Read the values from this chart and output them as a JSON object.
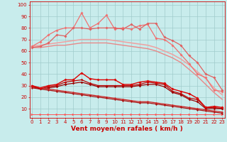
{
  "x": [
    0,
    1,
    2,
    3,
    4,
    5,
    6,
    7,
    8,
    9,
    10,
    11,
    12,
    13,
    14,
    15,
    16,
    17,
    18,
    19,
    20,
    21,
    22,
    23
  ],
  "series": [
    {
      "name": "smooth_top1",
      "values": [
        64,
        65,
        66,
        67,
        68,
        69,
        70,
        70,
        70,
        70,
        69,
        68,
        67,
        66,
        65,
        63,
        60,
        57,
        53,
        48,
        42,
        36,
        28,
        22
      ],
      "color": "#f0a0a0",
      "lw": 1.1,
      "marker": null,
      "ms": 0,
      "zorder": 2
    },
    {
      "name": "smooth_top2",
      "values": [
        63,
        63,
        64,
        65,
        65,
        66,
        67,
        67,
        67,
        67,
        66,
        65,
        64,
        63,
        62,
        60,
        57,
        54,
        50,
        44,
        38,
        31,
        24,
        18
      ],
      "color": "#e88888",
      "lw": 1.0,
      "marker": null,
      "ms": 0,
      "zorder": 2
    },
    {
      "name": "spiky_high1",
      "values": [
        64,
        68,
        74,
        78,
        80,
        80,
        93,
        80,
        84,
        91,
        79,
        80,
        79,
        82,
        83,
        71,
        70,
        65,
        57,
        49,
        40,
        37,
        26,
        25
      ],
      "color": "#f07070",
      "lw": 0.9,
      "marker": "D",
      "ms": 2.0,
      "zorder": 3
    },
    {
      "name": "spiky_high2",
      "values": [
        63,
        64,
        67,
        74,
        73,
        80,
        80,
        79,
        80,
        80,
        80,
        79,
        83,
        79,
        84,
        84,
        72,
        69,
        65,
        56,
        50,
        40,
        37,
        26
      ],
      "color": "#e06060",
      "lw": 0.9,
      "marker": "D",
      "ms": 2.0,
      "zorder": 3
    },
    {
      "name": "medium1",
      "values": [
        30,
        28,
        30,
        31,
        35,
        35,
        41,
        36,
        35,
        35,
        35,
        31,
        31,
        33,
        34,
        33,
        32,
        27,
        25,
        23,
        19,
        11,
        12,
        11
      ],
      "color": "#dd0000",
      "lw": 1.0,
      "marker": "D",
      "ms": 2.0,
      "zorder": 4
    },
    {
      "name": "medium2",
      "values": [
        30,
        27,
        29,
        30,
        33,
        34,
        35,
        32,
        30,
        30,
        30,
        30,
        30,
        31,
        33,
        32,
        31,
        25,
        23,
        19,
        18,
        11,
        11,
        10
      ],
      "color": "#bb0000",
      "lw": 0.9,
      "marker": "D",
      "ms": 1.8,
      "zorder": 3
    },
    {
      "name": "medium3",
      "values": [
        29,
        27,
        28,
        29,
        31,
        32,
        33,
        31,
        29,
        29,
        29,
        29,
        29,
        30,
        31,
        31,
        29,
        24,
        22,
        18,
        16,
        10,
        10,
        10
      ],
      "color": "#990000",
      "lw": 0.9,
      "marker": "D",
      "ms": 1.8,
      "zorder": 3
    },
    {
      "name": "linear_decline1",
      "values": [
        29,
        28,
        27,
        26,
        25,
        24,
        23,
        22,
        21,
        20,
        19,
        18,
        17,
        16,
        16,
        15,
        14,
        13,
        12,
        11,
        10,
        9,
        8,
        7
      ],
      "color": "#cc2222",
      "lw": 0.9,
      "marker": "D",
      "ms": 1.5,
      "zorder": 3
    },
    {
      "name": "linear_decline2",
      "values": [
        28,
        27,
        26,
        25,
        24,
        23,
        22,
        21,
        20,
        19,
        18,
        17,
        16,
        15,
        15,
        14,
        13,
        12,
        11,
        10,
        9,
        8,
        7,
        6
      ],
      "color": "#aa1111",
      "lw": 0.9,
      "marker": "D",
      "ms": 1.5,
      "zorder": 3
    },
    {
      "name": "arrow_row",
      "values": [
        5,
        5,
        5,
        5,
        5,
        5,
        5,
        5,
        5,
        5,
        5,
        5,
        5,
        5,
        5,
        5,
        5,
        5,
        5,
        5,
        5,
        5,
        5,
        5
      ],
      "color": "#ff5555",
      "lw": 0.7,
      "marker": ">",
      "ms": 2.5,
      "zorder": 1
    }
  ],
  "bg_color": "#c8ecec",
  "grid_color": "#a0cccc",
  "ylabel_vals": [
    10,
    20,
    30,
    40,
    50,
    60,
    70,
    80,
    90,
    100
  ],
  "ylim": [
    2,
    103
  ],
  "xlim": [
    -0.3,
    23.3
  ],
  "xlabel": "Vent moyen/en rafales ( km/h )",
  "xlabel_color": "#cc0000",
  "xlabel_fontsize": 6.5,
  "tick_color": "#cc0000",
  "tick_fontsize": 5.0,
  "axis_color": "#cc0000"
}
